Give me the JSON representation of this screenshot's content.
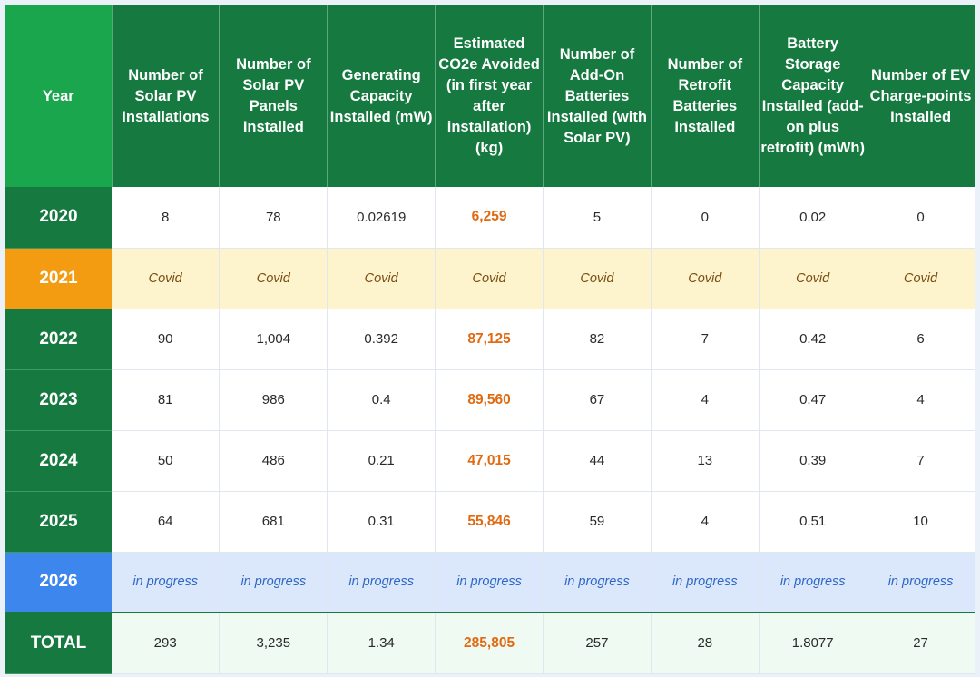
{
  "columns": [
    "Year",
    "Number of Solar PV Installations",
    "Number of Solar PV Panels Installed",
    "Generating Capacity Installed (mW)",
    "Estimated CO2e Avoided (in first year after installation) (kg)",
    "Number of Add-On Batteries Installed (with Solar PV)",
    "Number of Retrofit Batteries Installed",
    "Battery Storage Capacity Installed (add-on plus retrofit) (mWh)",
    "Number of EV Charge-points Installed"
  ],
  "rows": [
    {
      "year": "2020",
      "values": [
        "8",
        "78",
        "0.02619",
        "6,259",
        "5",
        "0",
        "0.02",
        "0"
      ]
    },
    {
      "year": "2021",
      "values": [
        "Covid",
        "Covid",
        "Covid",
        "Covid",
        "Covid",
        "Covid",
        "Covid",
        "Covid"
      ]
    },
    {
      "year": "2022",
      "values": [
        "90",
        "1,004",
        "0.392",
        "87,125",
        "82",
        "7",
        "0.42",
        "6"
      ]
    },
    {
      "year": "2023",
      "values": [
        "81",
        "986",
        "0.4",
        "89,560",
        "67",
        "4",
        "0.47",
        "4"
      ]
    },
    {
      "year": "2024",
      "values": [
        "50",
        "486",
        "0.21",
        "47,015",
        "44",
        "13",
        "0.39",
        "7"
      ]
    },
    {
      "year": "2025",
      "values": [
        "64",
        "681",
        "0.31",
        "55,846",
        "59",
        "4",
        "0.51",
        "10"
      ]
    },
    {
      "year": "2026",
      "values": [
        "in progress",
        "in progress",
        "in progress",
        "in progress",
        "in progress",
        "in progress",
        "in progress",
        "in progress"
      ]
    }
  ],
  "total": {
    "label": "TOTAL",
    "values": [
      "293",
      "3,235",
      "1.34",
      "285,805",
      "257",
      "28",
      "1.8077",
      "27"
    ]
  },
  "colors": {
    "header_green": "#16793f",
    "year_header_green": "#19a64c",
    "covid_orange": "#f39c12",
    "covid_bg": "#fdf3cc",
    "progress_blue": "#3d86ee",
    "progress_bg": "#dbe8fb",
    "co2_orange": "#e06a12",
    "total_bg": "#eefaf2"
  }
}
